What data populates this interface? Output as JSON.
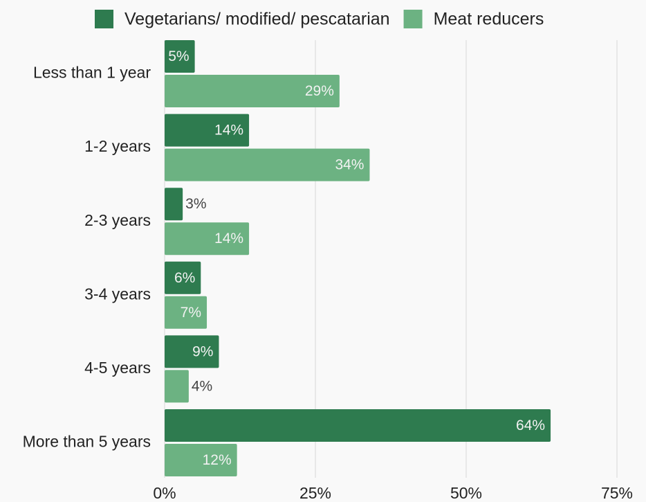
{
  "chart_data": {
    "type": "barh",
    "categories": [
      "Less than 1 year",
      "1-2 years",
      "2-3 years",
      "3-4 years",
      "4-5 years",
      "More than 5 years"
    ],
    "series": [
      {
        "name": "Vegetarians/ modified/ pescatarian",
        "color": "#2e7b4f",
        "values": [
          5,
          14,
          3,
          6,
          9,
          64
        ],
        "value_labels": [
          "5%",
          "14%",
          "3%",
          "6%",
          "9%",
          "64%"
        ]
      },
      {
        "name": "Meat reducers",
        "color": "#6cb282",
        "values": [
          29,
          34,
          14,
          7,
          4,
          12
        ],
        "value_labels": [
          "29%",
          "34%",
          "14%",
          "7%",
          "4%",
          "12%"
        ]
      }
    ],
    "xlim": [
      0,
      75
    ],
    "xticks": [
      {
        "value": 0,
        "label": "0%"
      },
      {
        "value": 25,
        "label": "25%"
      },
      {
        "value": 50,
        "label": "50%"
      },
      {
        "value": 75,
        "label": "75%"
      }
    ],
    "grid": true,
    "legend": "top"
  }
}
